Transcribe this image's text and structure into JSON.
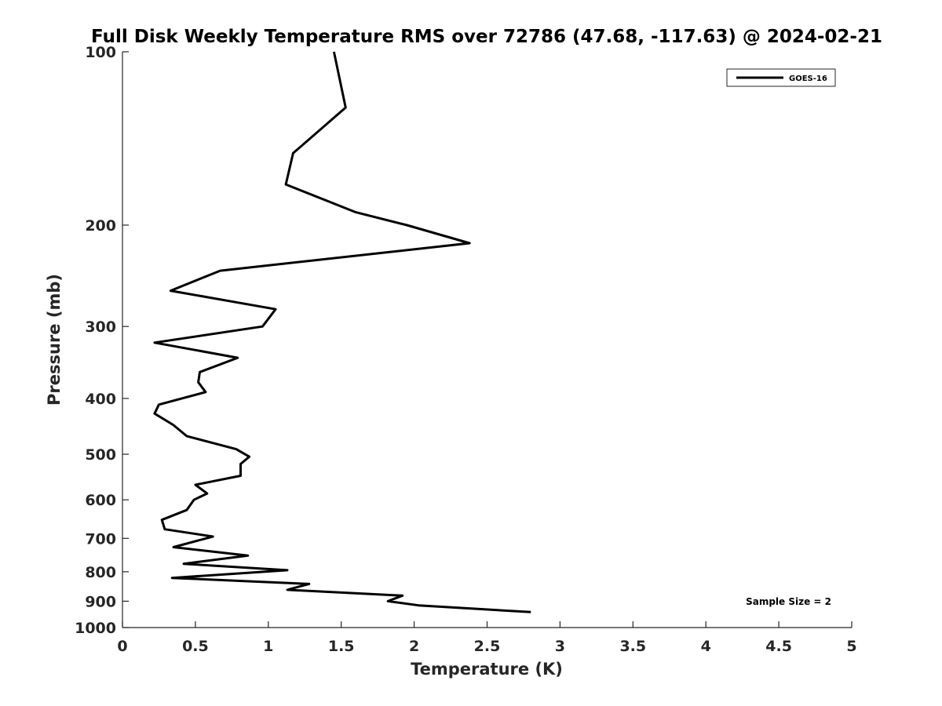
{
  "chart_data": {
    "type": "line",
    "title": "Full Disk Weekly Temperature RMS over 72786 (47.68, -117.63) @ 2024-02-21",
    "xlabel": "Temperature (K)",
    "ylabel": "Pressure (mb)",
    "xlim": [
      0,
      5
    ],
    "ylim": [
      1000,
      100
    ],
    "yscale": "log",
    "y_reversed": true,
    "x_ticks": [
      "0",
      "0.5",
      "1",
      "1.5",
      "2",
      "2.5",
      "3",
      "3.5",
      "4",
      "4.5",
      "5"
    ],
    "x_tick_values": [
      0,
      0.5,
      1,
      1.5,
      2,
      2.5,
      3,
      3.5,
      4,
      4.5,
      5
    ],
    "y_ticks": [
      "100",
      "200",
      "300",
      "400",
      "500",
      "600",
      "700",
      "800",
      "900",
      "1000"
    ],
    "y_tick_values": [
      100,
      200,
      300,
      400,
      500,
      600,
      700,
      800,
      900,
      1000
    ],
    "grid": false,
    "legend_position": "top-right",
    "annotation": "Sample Size = 2",
    "series": [
      {
        "name": "GOES-16",
        "color": "#000000",
        "points": [
          [
            1.45,
            100
          ],
          [
            1.53,
            125
          ],
          [
            1.17,
            150
          ],
          [
            1.12,
            170
          ],
          [
            1.6,
            190
          ],
          [
            1.95,
            200
          ],
          [
            2.38,
            215
          ],
          [
            0.67,
            240
          ],
          [
            0.33,
            260
          ],
          [
            1.05,
            280
          ],
          [
            0.96,
            300
          ],
          [
            0.22,
            320
          ],
          [
            0.79,
            340
          ],
          [
            0.53,
            360
          ],
          [
            0.52,
            375
          ],
          [
            0.57,
            390
          ],
          [
            0.25,
            410
          ],
          [
            0.22,
            425
          ],
          [
            0.35,
            445
          ],
          [
            0.44,
            465
          ],
          [
            0.78,
            490
          ],
          [
            0.87,
            505
          ],
          [
            0.81,
            520
          ],
          [
            0.81,
            545
          ],
          [
            0.5,
            565
          ],
          [
            0.58,
            585
          ],
          [
            0.49,
            600
          ],
          [
            0.44,
            625
          ],
          [
            0.27,
            650
          ],
          [
            0.29,
            675
          ],
          [
            0.62,
            695
          ],
          [
            0.35,
            725
          ],
          [
            0.86,
            750
          ],
          [
            0.42,
            775
          ],
          [
            1.13,
            795
          ],
          [
            0.34,
            820
          ],
          [
            1.28,
            840
          ],
          [
            1.13,
            860
          ],
          [
            1.92,
            880
          ],
          [
            1.82,
            900
          ],
          [
            2.03,
            915
          ],
          [
            2.8,
            940
          ]
        ]
      }
    ]
  }
}
